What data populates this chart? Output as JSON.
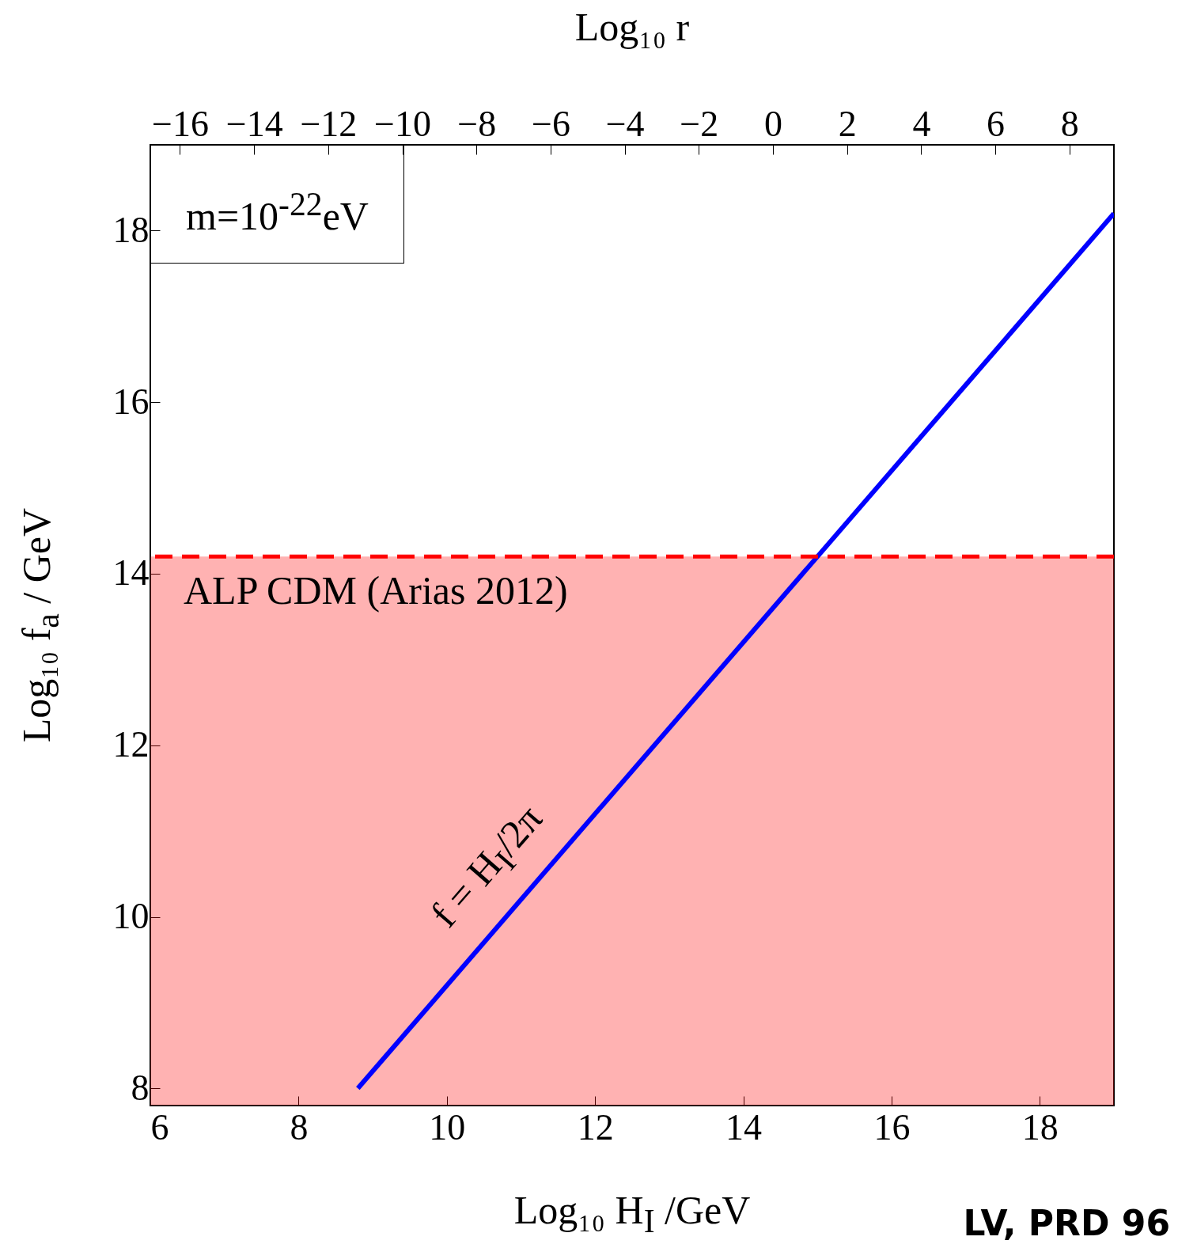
{
  "chart_data": {
    "type": "line",
    "xlabel": "Log₁₀ H$_{I}$ /GeV",
    "ylabel": "Log₁₀ f$_{a}$ / GeV",
    "x2label": "Log₁₀ r",
    "xlim": [
      6,
      19
    ],
    "xticks": [
      6,
      8,
      10,
      12,
      14,
      16,
      18
    ],
    "ylim": [
      7.8,
      19
    ],
    "yticks": [
      8,
      10,
      12,
      14,
      16,
      18
    ],
    "x2lim": [
      -16.8,
      9.2
    ],
    "x2ticks": [
      -16,
      -14,
      -12,
      -10,
      -8,
      -6,
      -4,
      -2,
      0,
      2,
      4,
      6,
      8
    ],
    "series": [
      {
        "color": "#0000ff",
        "x": [
          8.8,
          19
        ],
        "values": [
          8.0,
          18.2
        ]
      }
    ],
    "ref_lines": [
      {
        "axis": "y",
        "value": 14.2,
        "color": "#ff0000",
        "line_style": "dashed"
      }
    ],
    "bands": [
      {
        "axis": "y",
        "from": 7.8,
        "to": 14.2,
        "label": "ALP CDM (Arias 2012)",
        "color": "#ff0000"
      }
    ],
    "annotations": [
      "m=10$^{-22}$eV",
      {
        "text": "f = H$_{I}$/2π",
        "x": 11.0,
        "y": 10.2
      },
      "LV, PRD 96"
    ],
    "grid": false
  }
}
